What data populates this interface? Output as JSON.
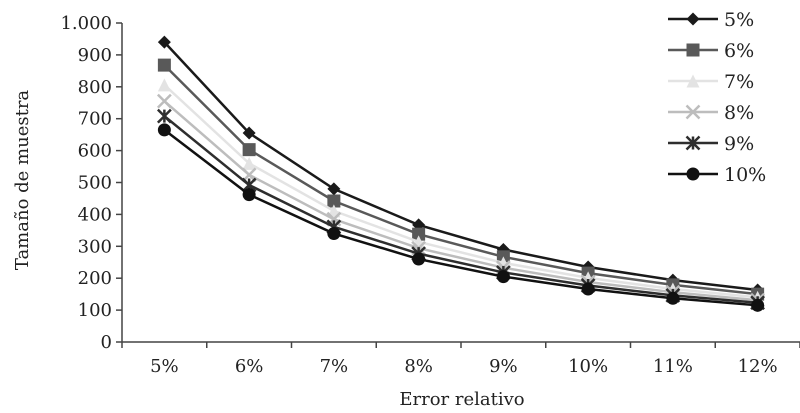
{
  "chart_data": {
    "type": "line",
    "title": "",
    "xlabel": "Error relativo",
    "ylabel": "Tamaño de muestra",
    "categories": [
      "5%",
      "6%",
      "7%",
      "8%",
      "9%",
      "10%",
      "11%",
      "12%"
    ],
    "ylim": [
      0,
      1000
    ],
    "yticks": [
      0,
      100,
      200,
      300,
      400,
      500,
      600,
      700,
      800,
      900,
      1000
    ],
    "ytick_labels": [
      "0",
      "100",
      "200",
      "300",
      "400",
      "500",
      "600",
      "700",
      "800",
      "900",
      "1.000"
    ],
    "grid": false,
    "legend_position": "top-right",
    "series": [
      {
        "name": "5%",
        "marker": "diamond",
        "color": "#1a1a1a",
        "values": [
          940,
          655,
          480,
          367,
          290,
          235,
          194,
          163
        ]
      },
      {
        "name": "6%",
        "marker": "square",
        "color": "#595959",
        "values": [
          868,
          603,
          442,
          338,
          267,
          216,
          179,
          150
        ]
      },
      {
        "name": "7%",
        "marker": "triangle",
        "color": "#e3e3e3",
        "values": [
          806,
          560,
          411,
          314,
          248,
          201,
          166,
          140
        ]
      },
      {
        "name": "8%",
        "marker": "x",
        "color": "#bdbdbd",
        "values": [
          755,
          524,
          385,
          294,
          233,
          188,
          156,
          131
        ]
      },
      {
        "name": "9%",
        "marker": "star",
        "color": "#2e2e2e",
        "values": [
          708,
          492,
          361,
          277,
          218,
          177,
          146,
          123
        ]
      },
      {
        "name": "10%",
        "marker": "circle",
        "color": "#111111",
        "values": [
          665,
          462,
          340,
          260,
          205,
          166,
          137,
          115
        ]
      }
    ]
  }
}
